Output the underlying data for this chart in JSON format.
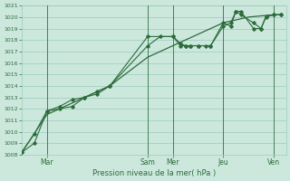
{
  "xlabel": "Pression niveau de la mer( hPa )",
  "bg_color": "#cce8dd",
  "grid_color": "#99ccbb",
  "line_color": "#2d6b3c",
  "ylim": [
    1008,
    1021
  ],
  "yticks": [
    1008,
    1009,
    1010,
    1011,
    1012,
    1013,
    1014,
    1015,
    1016,
    1017,
    1018,
    1019,
    1020,
    1021
  ],
  "vline_positions": [
    1,
    5,
    6,
    8,
    10
  ],
  "xtick_positions": [
    1,
    5,
    6,
    8,
    10
  ],
  "xtick_labels": [
    "Mar",
    "Sam",
    "Mer",
    "Jeu",
    "Ven"
  ],
  "series1_x": [
    0,
    0.5,
    1.0,
    1.5,
    2.0,
    2.5,
    3.0,
    3.5,
    5.0,
    6.0,
    6.3,
    6.5,
    6.7,
    7.0,
    7.3,
    7.5,
    8.0,
    8.3,
    8.5,
    8.7,
    9.2,
    9.5,
    9.7,
    10.0,
    10.3
  ],
  "series1_y": [
    1008.2,
    1009.0,
    1011.8,
    1012.0,
    1012.2,
    1013.0,
    1013.5,
    1014.0,
    1018.3,
    1018.3,
    1017.7,
    1017.5,
    1017.5,
    1017.5,
    1017.5,
    1017.5,
    1019.2,
    1019.5,
    1020.5,
    1020.5,
    1019.0,
    1019.0,
    1020.1,
    1020.2,
    1020.2
  ],
  "series2_x": [
    0,
    0.5,
    1.0,
    1.5,
    2.0,
    2.5,
    3.0,
    3.5,
    5.0,
    5.5,
    6.0,
    6.3,
    6.5,
    6.7,
    7.0,
    7.5,
    8.0,
    8.3,
    8.5,
    8.7,
    9.2,
    9.5,
    9.7,
    10.0,
    10.3
  ],
  "series2_y": [
    1008.2,
    1009.8,
    1011.8,
    1012.2,
    1012.8,
    1013.0,
    1013.3,
    1014.0,
    1017.5,
    1018.3,
    1018.3,
    1017.5,
    1017.5,
    1017.5,
    1017.5,
    1017.5,
    1019.5,
    1019.2,
    1020.5,
    1020.2,
    1019.5,
    1019.0,
    1020.0,
    1020.2,
    1020.2
  ],
  "series3_x": [
    0,
    1.0,
    2.0,
    3.0,
    3.5,
    5.0,
    6.0,
    7.0,
    8.0,
    9.0,
    10.0,
    10.3
  ],
  "series3_y": [
    1008.2,
    1011.5,
    1012.5,
    1013.5,
    1014.0,
    1016.5,
    1017.5,
    1018.5,
    1019.5,
    1020.0,
    1020.2,
    1020.2
  ]
}
